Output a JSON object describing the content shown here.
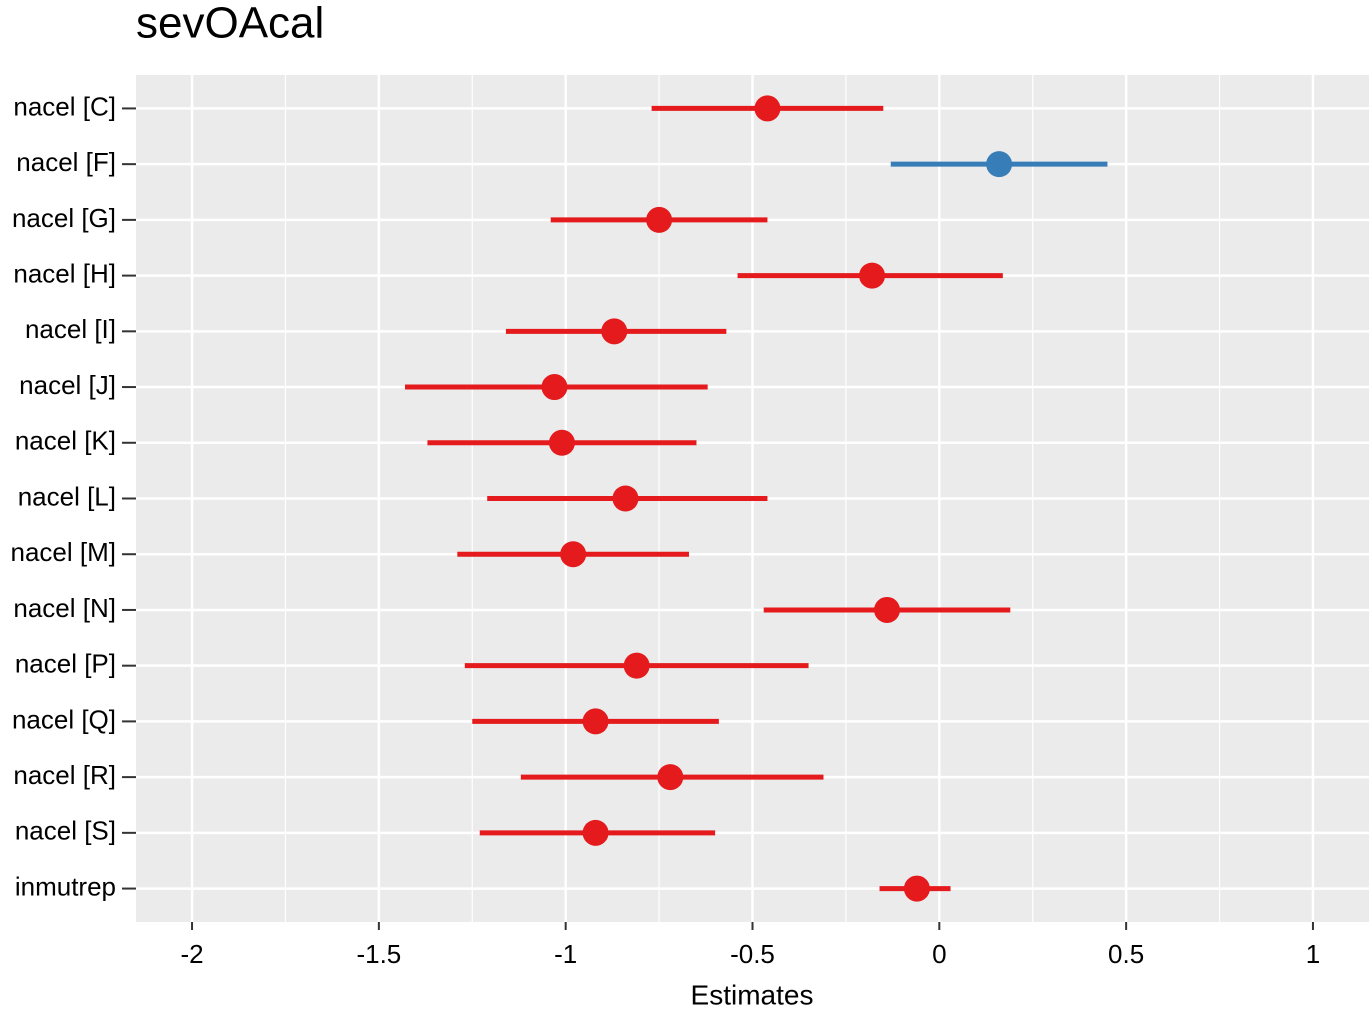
{
  "chart_data": {
    "type": "forest",
    "title": "sevOAcal",
    "x_label": "Estimates",
    "categories": [
      "nacel [C]",
      "nacel [F]",
      "nacel [G]",
      "nacel [H]",
      "nacel [I]",
      "nacel [J]",
      "nacel [K]",
      "nacel [L]",
      "nacel [M]",
      "nacel [N]",
      "nacel [P]",
      "nacel [Q]",
      "nacel [R]",
      "nacel [S]",
      "inmutrep"
    ],
    "values": [
      -0.46,
      0.16,
      -0.75,
      -0.18,
      -0.87,
      -1.03,
      -1.01,
      -0.84,
      -0.98,
      -0.14,
      -0.81,
      -0.92,
      -0.72,
      -0.92,
      -0.06
    ],
    "lower": [
      -0.77,
      -0.13,
      -1.04,
      -0.54,
      -1.16,
      -1.43,
      -1.37,
      -1.21,
      -1.29,
      -0.47,
      -1.27,
      -1.25,
      -1.12,
      -1.23,
      -0.16
    ],
    "upper": [
      -0.15,
      0.45,
      -0.46,
      0.17,
      -0.57,
      -0.62,
      -0.65,
      -0.46,
      -0.67,
      0.19,
      -0.35,
      -0.59,
      -0.31,
      -0.6,
      0.03
    ],
    "colors": [
      "#e41a1c",
      "#377eb8",
      "#e41a1c",
      "#e41a1c",
      "#e41a1c",
      "#e41a1c",
      "#e41a1c",
      "#e41a1c",
      "#e41a1c",
      "#e41a1c",
      "#e41a1c",
      "#e41a1c",
      "#e41a1c",
      "#e41a1c",
      "#e41a1c"
    ],
    "xlim": [
      -2.15,
      1.15
    ],
    "xticks": [
      -2,
      -1.5,
      -1,
      -0.5,
      0,
      0.5,
      1
    ],
    "grid": true
  }
}
